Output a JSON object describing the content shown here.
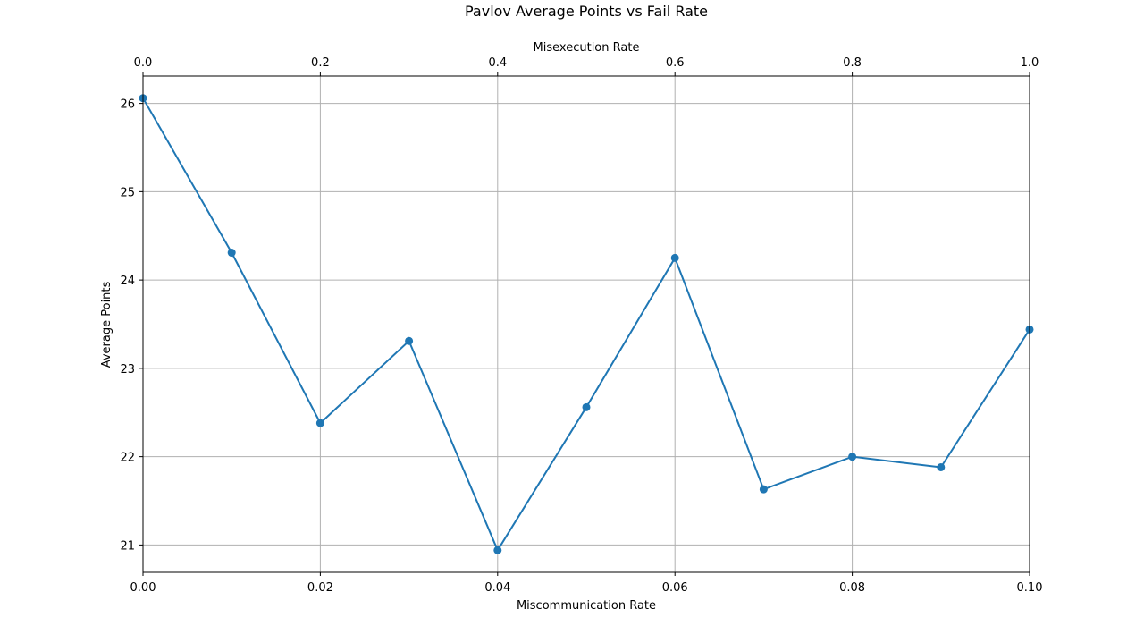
{
  "chart_data": {
    "type": "line",
    "title": "Pavlov Average Points vs Fail Rate",
    "xlabel": "Miscommunication Rate",
    "ylabel": "Average Points",
    "x2label": "Misexecution Rate",
    "x": [
      0.0,
      0.01,
      0.02,
      0.03,
      0.04,
      0.05,
      0.06,
      0.07,
      0.08,
      0.09,
      0.1
    ],
    "series": [
      {
        "values": [
          26.06,
          24.31,
          22.38,
          23.31,
          20.94,
          22.56,
          24.25,
          21.63,
          22.0,
          21.88,
          23.44
        ]
      }
    ],
    "xlim": [
      0.0,
      0.1
    ],
    "ylim": [
      20.69,
      26.31
    ],
    "x_ticks": [
      "0.00",
      "0.02",
      "0.04",
      "0.06",
      "0.08",
      "0.10"
    ],
    "x_tick_values": [
      0.0,
      0.02,
      0.04,
      0.06,
      0.08,
      0.1
    ],
    "x2_ticks": [
      "0.0",
      "0.2",
      "0.4",
      "0.6",
      "0.8",
      "1.0"
    ],
    "y_ticks": [
      "21",
      "22",
      "23",
      "24",
      "25",
      "26"
    ],
    "y_tick_values": [
      21,
      22,
      23,
      24,
      25,
      26
    ],
    "grid": true,
    "line_color": "#1f77b4"
  }
}
